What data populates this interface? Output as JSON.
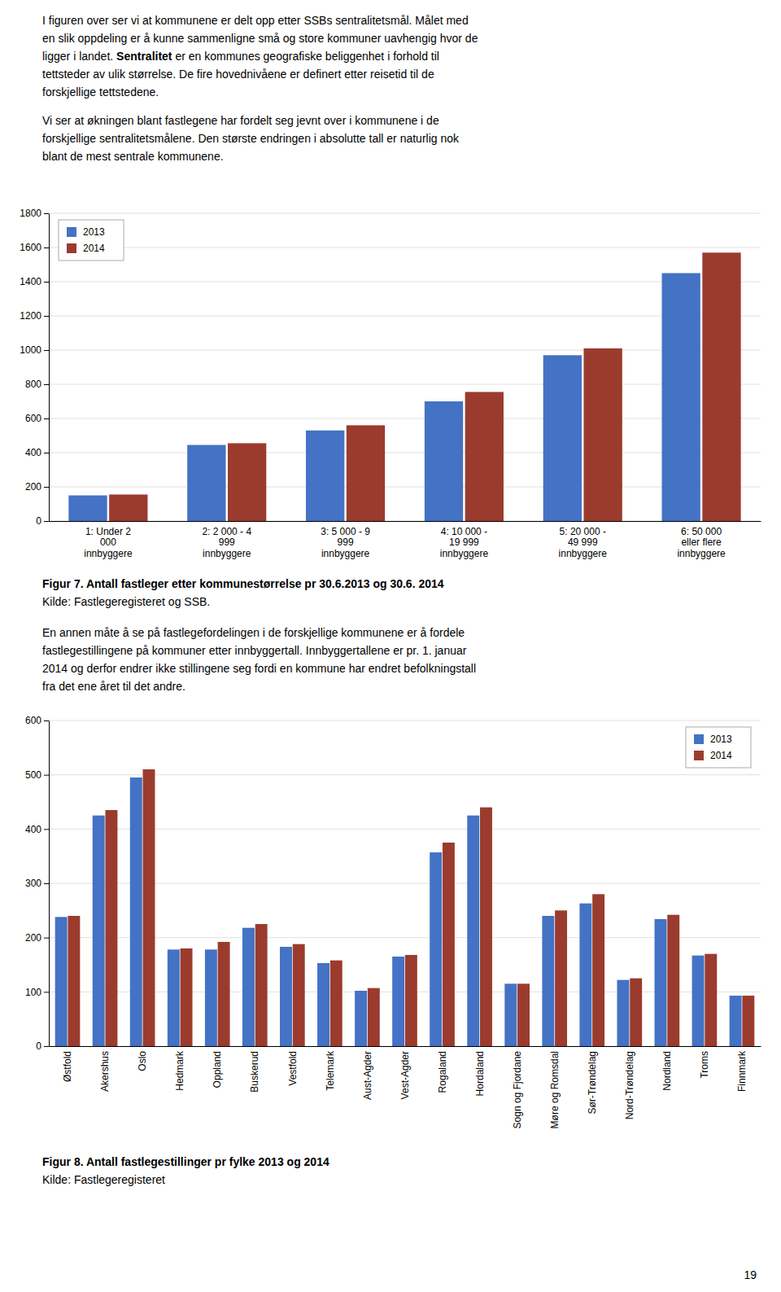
{
  "chart_data": [
    {
      "type": "bar",
      "title": "Figur 7. Antall fastleger etter kommunestørrelse pr 30.6.2013 og 30.6. 2014",
      "source": "Kilde: Fastlegeregisteret og SSB.",
      "categories": [
        "1: Under 2\n000\ninnbyggere",
        "2: 2 000 - 4\n999\ninnbyggere",
        "3: 5 000 - 9\n999\ninnbyggere",
        "4: 10 000 -\n19 999\ninnbyggere",
        "5: 20 000 -\n49 999\ninnbyggere",
        "6: 50 000\neller flere\ninnbyggere"
      ],
      "series": [
        {
          "name": "2013",
          "color": "#4472C4",
          "values": [
            150,
            445,
            530,
            700,
            970,
            1450
          ]
        },
        {
          "name": "2014",
          "color": "#9B3B2E",
          "values": [
            155,
            455,
            560,
            755,
            1010,
            1570
          ]
        }
      ],
      "ylim": [
        0,
        1800
      ],
      "yticks": [
        0,
        200,
        400,
        600,
        800,
        1000,
        1200,
        1400,
        1600,
        1800
      ],
      "grid": true,
      "legend": "upper left"
    },
    {
      "type": "bar",
      "title": "Figur 8. Antall fastlegestillinger pr fylke 2013 og 2014",
      "source": "Kilde: Fastlegeregisteret",
      "categories": [
        "Østfold",
        "Akershus",
        "Oslo",
        "Hedmark",
        "Oppland",
        "Buskerud",
        "Vestfold",
        "Telemark",
        "Aust-Agder",
        "Vest-Agder",
        "Rogaland",
        "Hordaland",
        "Sogn og Fjordane",
        "Møre og Romsdal",
        "Sør-Trøndelag",
        "Nord-Trøndelag",
        "Nordland",
        "Troms",
        "Finnmark"
      ],
      "series": [
        {
          "name": "2013",
          "color": "#4472C4",
          "values": [
            238,
            425,
            495,
            178,
            178,
            218,
            183,
            153,
            102,
            165,
            357,
            425,
            115,
            240,
            263,
            122,
            234,
            167,
            93
          ]
        },
        {
          "name": "2014",
          "color": "#9B3B2E",
          "values": [
            240,
            435,
            510,
            180,
            192,
            225,
            188,
            158,
            107,
            168,
            375,
            440,
            115,
            250,
            280,
            125,
            242,
            170,
            93
          ]
        }
      ],
      "ylim": [
        0,
        600
      ],
      "yticks": [
        0,
        100,
        200,
        300,
        400,
        500,
        600
      ],
      "grid": true,
      "legend": "upper right"
    }
  ],
  "page": {
    "intro": [
      [
        "I figuren over ser vi at kommunene er delt opp etter SSBs sentralitetsmål. Målet med",
        "en slik oppdeling er å kunne sammenligne små og store kommuner uavhengig hvor de",
        [
          "ligger i landet. ",
          "Sentralitet",
          " er en kommunes geografiske beliggenhet i forhold til"
        ],
        "tettsteder av ulik størrelse. De fire hovednivåene er definert etter reisetid til de",
        "forskjellige tettstedene."
      ],
      [
        "Vi ser at økningen blant fastlegene har fordelt seg jevnt over i kommunene i de",
        "forskjellige sentralitetsmålene. Den største endringen i absolutte tall er naturlig nok",
        "blant de mest sentrale kommunene."
      ]
    ],
    "middle": [
      "En annen måte å se på fastlegefordelingen i de forskjellige kommunene er å fordele",
      "fastlegestillingene på kommuner etter innbyggertall. Innbyggertallene er pr. 1. januar",
      "2014 og derfor endrer ikke stillingene seg fordi en kommune har endret befolkningstall",
      "fra det ene året til det andre."
    ],
    "page_number": "19"
  }
}
